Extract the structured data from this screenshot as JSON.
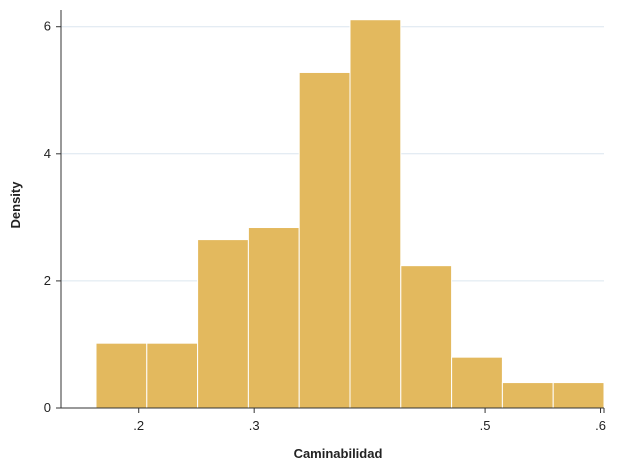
{
  "chart_data": {
    "type": "bar",
    "title": "",
    "xlabel": "Caminabilidad",
    "ylabel": "Density",
    "bin_edges": [
      0.163,
      0.207,
      0.251,
      0.295,
      0.339,
      0.383,
      0.427,
      0.471,
      0.515,
      0.559,
      0.603
    ],
    "values": [
      1.02,
      1.02,
      2.65,
      2.84,
      5.28,
      6.11,
      2.24,
      0.8,
      0.4,
      0.4
    ],
    "xlim": [
      0.163,
      0.603
    ],
    "ylim": [
      0,
      6.2
    ],
    "xticks": [
      0.2,
      0.3,
      0.5,
      0.6
    ],
    "xtick_labels": [
      ".2",
      ".3",
      ".5",
      ".6"
    ],
    "yticks": [
      0,
      2,
      4,
      6
    ],
    "ytick_labels": [
      "0",
      "2",
      "4",
      "6"
    ],
    "grid": true,
    "legend": "none",
    "colors": {
      "bar_fill": "#E3B95E",
      "bar_edge": "#FFFFFF",
      "axis": "#333333",
      "grid": "#DCE6EF"
    }
  }
}
